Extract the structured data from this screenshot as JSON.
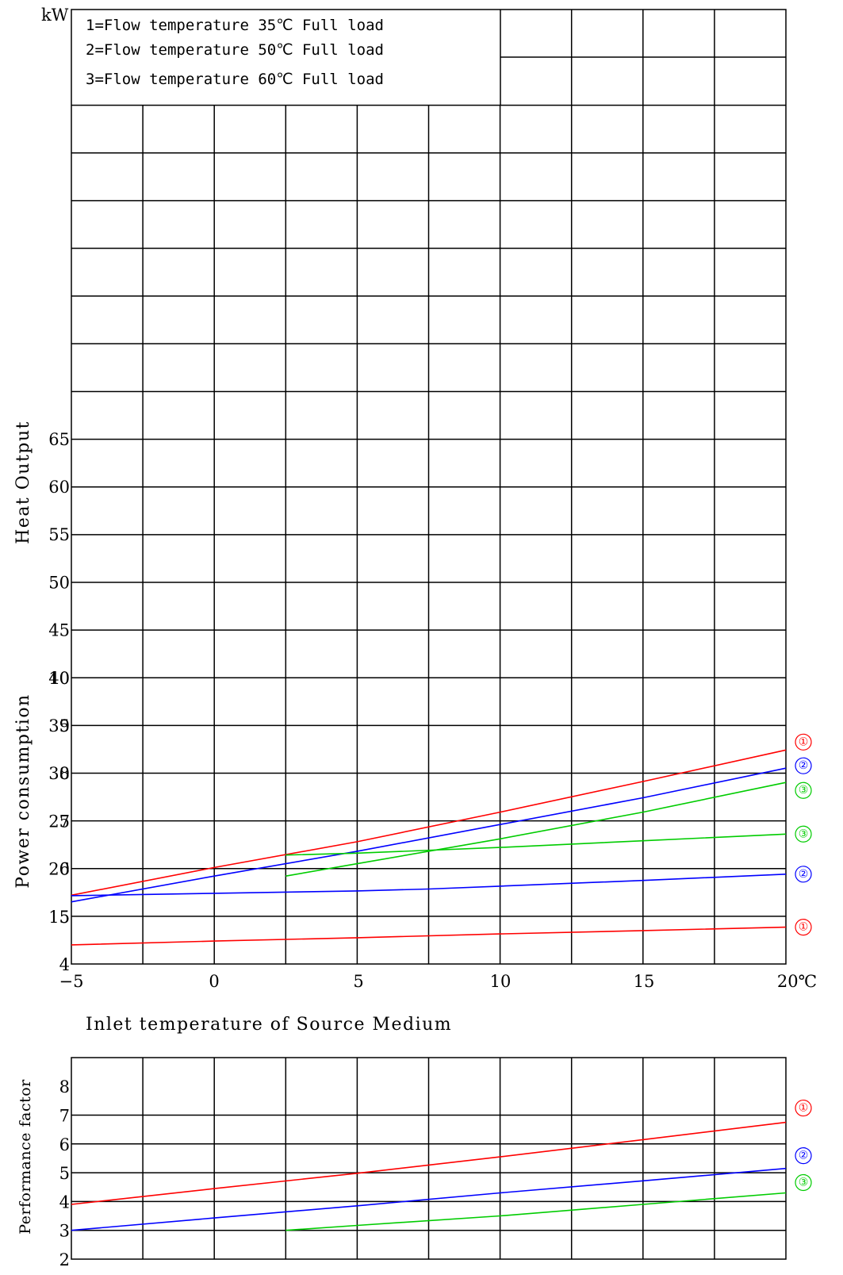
{
  "chart_data": [
    {
      "type": "line",
      "panel": "heat",
      "unit_label": "kW",
      "ylabel": "Heat Output",
      "yticks": [
        "15",
        "20",
        "25",
        "30",
        "35",
        "40",
        "45",
        "50",
        "55",
        "60",
        "65"
      ],
      "x": [
        -5,
        0,
        5,
        10,
        15,
        20
      ],
      "ylim": [
        10,
        70
      ],
      "legend": [
        "1=Flow temperature 35℃ Full load",
        "2=Flow temperature 50℃ Full load",
        "3=Flow temperature 60℃ Full load"
      ],
      "series": [
        {
          "name": "①",
          "color": "#ff0000",
          "x": [
            -5,
            0,
            5,
            10,
            15,
            20
          ],
          "y": [
            17.2,
            20.1,
            22.8,
            25.9,
            29.1,
            32.4
          ]
        },
        {
          "name": "②",
          "color": "#0000ff",
          "x": [
            -5,
            0,
            5,
            10,
            15,
            20
          ],
          "y": [
            16.5,
            19.2,
            21.8,
            24.6,
            27.4,
            30.5
          ]
        },
        {
          "name": "③",
          "color": "#00cc00",
          "x": [
            2.5,
            5,
            10,
            15,
            20
          ],
          "y": [
            19.2,
            20.5,
            23.1,
            25.9,
            29.0
          ]
        }
      ]
    },
    {
      "type": "line",
      "panel": "power",
      "ylabel": "Power consumption",
      "yticks": [
        "4",
        "5",
        "6",
        "7",
        "8",
        "9",
        "10"
      ],
      "ylim": [
        4,
        11
      ],
      "xlabel": "Inlet temperature of Source Medium",
      "xticks": [
        "−5",
        "0",
        "5",
        "10",
        "15",
        "20℃"
      ],
      "series": [
        {
          "name": "①",
          "color": "#ff0000",
          "x": [
            -5,
            0,
            5,
            10,
            15,
            20
          ],
          "y": [
            4.4,
            4.48,
            4.55,
            4.63,
            4.7,
            4.77
          ]
        },
        {
          "name": "②",
          "color": "#0000ff",
          "x": [
            -5,
            0,
            5,
            7.5,
            10,
            15,
            20
          ],
          "y": [
            5.43,
            5.48,
            5.53,
            5.57,
            5.63,
            5.75,
            5.88
          ]
        },
        {
          "name": "③",
          "color": "#00cc00",
          "x": [
            2.5,
            5,
            10,
            15,
            20
          ],
          "y": [
            6.28,
            6.32,
            6.44,
            6.58,
            6.72
          ]
        }
      ]
    },
    {
      "type": "line",
      "panel": "cop",
      "ylabel": "Performance factor",
      "yticks": [
        "2",
        "3",
        "4",
        "5",
        "6",
        "7",
        "8"
      ],
      "ylim": [
        2,
        8
      ],
      "series": [
        {
          "name": "①",
          "color": "#ff0000",
          "x": [
            -5,
            0,
            5,
            10,
            15,
            20
          ],
          "y": [
            3.9,
            4.45,
            4.98,
            5.55,
            6.15,
            6.75
          ]
        },
        {
          "name": "②",
          "color": "#0000ff",
          "x": [
            -5,
            0,
            5,
            10,
            15,
            20
          ],
          "y": [
            3.0,
            3.43,
            3.85,
            4.3,
            4.72,
            5.15
          ]
        },
        {
          "name": "③",
          "color": "#00cc00",
          "x": [
            2.5,
            5,
            10,
            15,
            20
          ],
          "y": [
            3.0,
            3.17,
            3.5,
            3.9,
            4.3
          ]
        }
      ]
    }
  ]
}
